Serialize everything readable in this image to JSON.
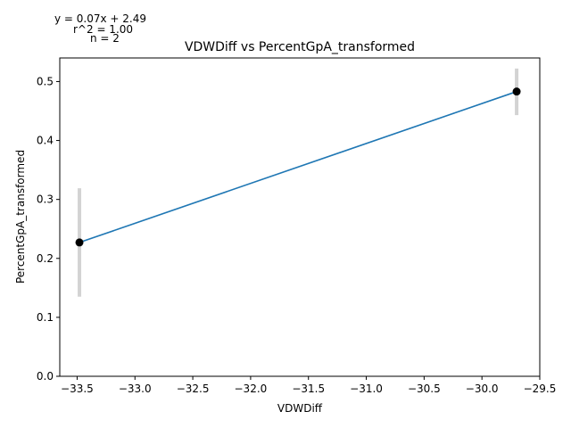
{
  "chart_data": {
    "type": "scatter",
    "title": "VDWDiff vs PercentGpA_transformed",
    "xlabel": "VDWDiff",
    "ylabel": "PercentGpA_transformed",
    "xlim": [
      -33.65,
      -29.5
    ],
    "ylim": [
      0.0,
      0.54
    ],
    "xticks": [
      -33.5,
      -33.0,
      -32.5,
      -32.0,
      -31.5,
      -31.0,
      -30.5,
      -30.0,
      -29.5
    ],
    "xtick_labels": [
      "−33.5",
      "−33.0",
      "−32.5",
      "−32.0",
      "−31.5",
      "−31.0",
      "−30.5",
      "−30.0",
      "−29.5"
    ],
    "yticks": [
      0.0,
      0.1,
      0.2,
      0.3,
      0.4,
      0.5
    ],
    "ytick_labels": [
      "0.0",
      "0.1",
      "0.2",
      "0.3",
      "0.4",
      "0.5"
    ],
    "points": [
      {
        "x": -33.48,
        "y": 0.227,
        "err_low": 0.135,
        "err_high": 0.319
      },
      {
        "x": -29.7,
        "y": 0.483,
        "err_low": 0.443,
        "err_high": 0.522
      }
    ],
    "fit_line": {
      "x": [
        -33.48,
        -29.7
      ],
      "y": [
        0.227,
        0.483
      ]
    },
    "annotations": [
      "y = 0.07x + 2.49",
      "r^2 = 1.00",
      "n = 2"
    ],
    "grid": false,
    "colors": {
      "line": "#1f77b4",
      "points": "#000000",
      "errorbars": "#d3d3d3"
    }
  }
}
